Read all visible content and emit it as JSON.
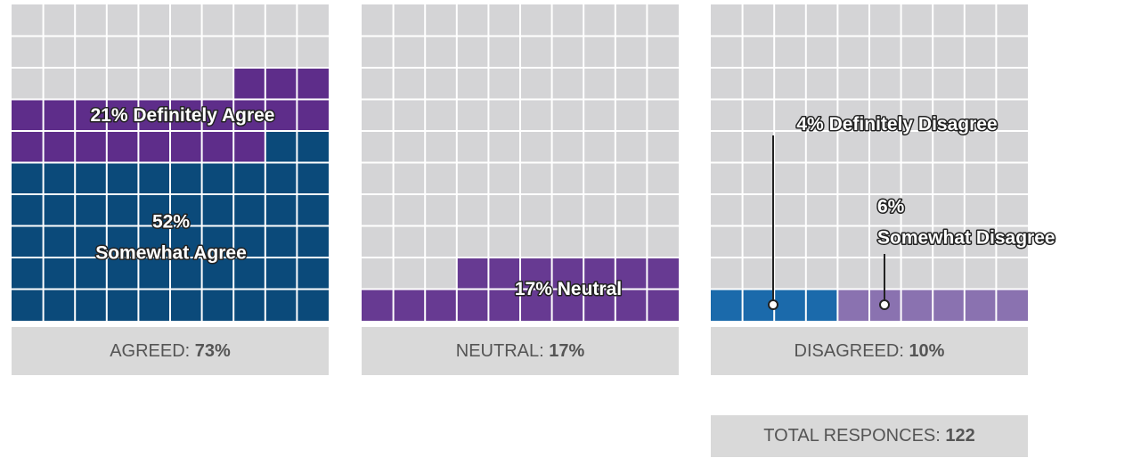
{
  "chart_data": {
    "type": "waffle",
    "panels": [
      {
        "summary_label": "AGREED:",
        "summary_value": "73%",
        "series": [
          {
            "name": "Somewhat Agree",
            "color": "#0b4a7a",
            "values": [
              52
            ],
            "value_labels": [
              "52%"
            ]
          },
          {
            "name": "Definitely Agree",
            "color": "#5e2d8a",
            "values": [
              21
            ],
            "value_labels": [
              "21%"
            ]
          }
        ]
      },
      {
        "summary_label": "NEUTRAL:",
        "summary_value": "17%",
        "series": [
          {
            "name": "Neutral",
            "color": "#673a92",
            "values": [
              17
            ],
            "value_labels": [
              "17%"
            ]
          }
        ]
      },
      {
        "summary_label": "DISAGREED:",
        "summary_value": "10%",
        "series": [
          {
            "name": "Somewhat Disagree",
            "color": "#8a72b0",
            "values": [
              6
            ],
            "value_labels": [
              "6%"
            ]
          },
          {
            "name": "Definitely Disagree",
            "color": "#1b6aab",
            "values": [
              4
            ],
            "value_labels": [
              "4%"
            ]
          }
        ]
      }
    ],
    "total_label": "TOTAL RESPONCES:",
    "total_value": "122"
  }
}
